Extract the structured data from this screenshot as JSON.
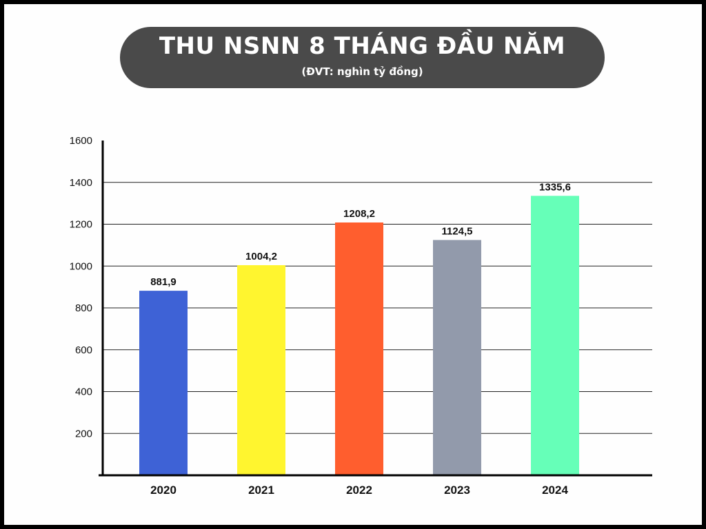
{
  "chart_data": {
    "type": "bar",
    "title": "THU NSNN 8 THÁNG ĐẦU NĂM",
    "subtitle": "(ĐVT: nghìn tỷ đồng)",
    "categories": [
      "2020",
      "2021",
      "2022",
      "2023",
      "2024"
    ],
    "values": [
      881.9,
      1004.2,
      1208.2,
      1124.5,
      1335.6
    ],
    "value_labels": [
      "881,9",
      "1004,2",
      "1208,2",
      "1124,5",
      "1335,6"
    ],
    "bar_colors": [
      "#3e62d6",
      "#fff52f",
      "#ff5e2e",
      "#929aab",
      "#66ffb8"
    ],
    "yticks": [
      200,
      400,
      600,
      800,
      1000,
      1200,
      1400,
      1600
    ],
    "ylim": [
      0,
      1600
    ],
    "xlabel": "",
    "ylabel": "",
    "grid": true,
    "legend": "none"
  }
}
